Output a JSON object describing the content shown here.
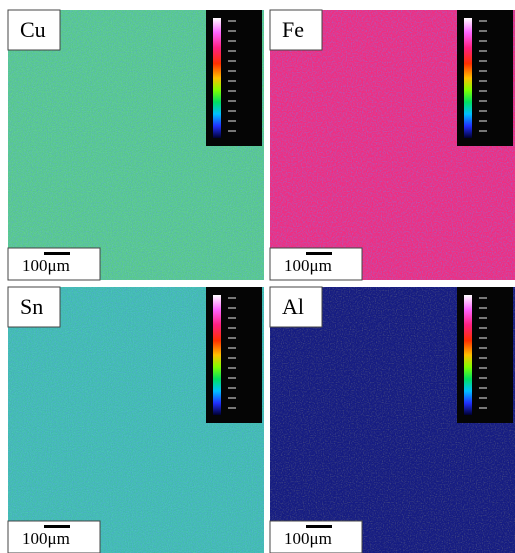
{
  "panels": [
    {
      "label": "Cu",
      "scale_bar": "100μm"
    },
    {
      "label": "Fe",
      "scale_bar": "100μm"
    },
    {
      "label": "Sn",
      "scale_bar": "100μm"
    },
    {
      "label": "Al",
      "scale_bar": "100μm"
    }
  ]
}
